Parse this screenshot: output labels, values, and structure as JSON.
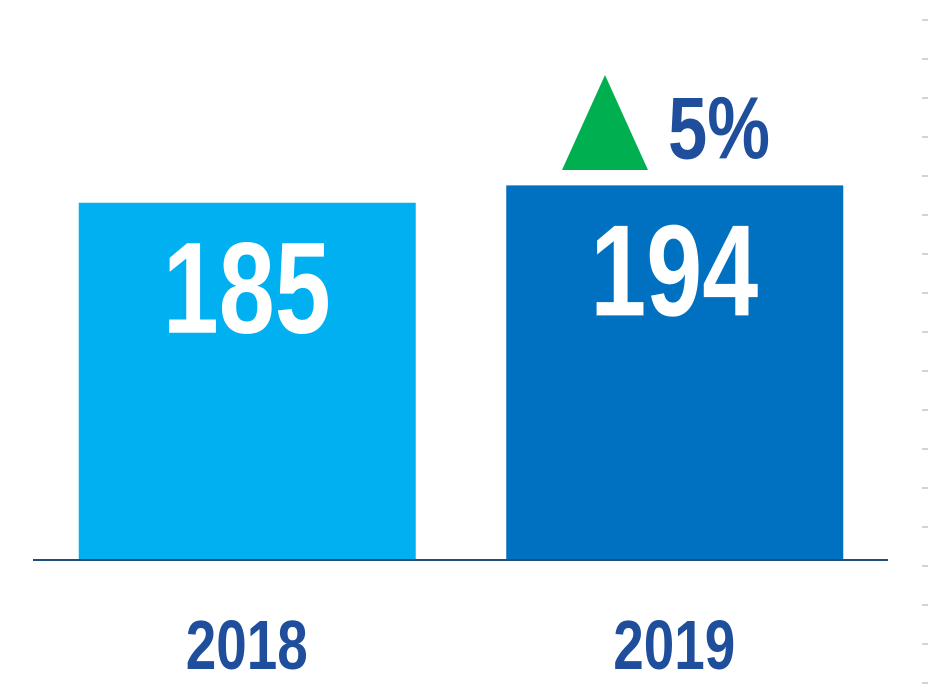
{
  "chart_data": {
    "type": "bar",
    "categories": [
      "2018",
      "2019"
    ],
    "values": [
      185,
      194
    ],
    "colors": [
      "#00b0f0",
      "#0070c0"
    ],
    "ylim": [
      0,
      290
    ],
    "annotation": "5%"
  }
}
